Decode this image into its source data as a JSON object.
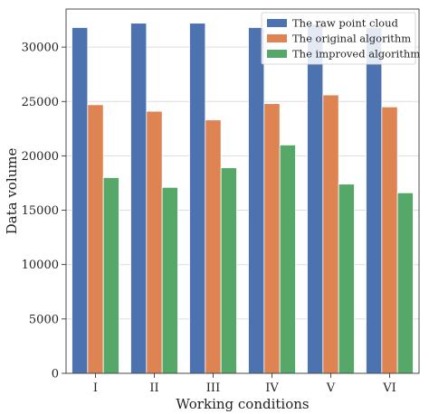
{
  "chart_data": {
    "type": "bar",
    "title": "",
    "xlabel": "Working conditions",
    "ylabel": "Data volume",
    "categories": [
      "I",
      "II",
      "III",
      "IV",
      "V",
      "VI"
    ],
    "ylim": [
      0,
      33500
    ],
    "yticks": [
      0,
      5000,
      10000,
      15000,
      20000,
      25000,
      30000
    ],
    "grid": true,
    "legend_position": "top-right",
    "series": [
      {
        "name": "The raw point cloud",
        "color": "#4c72b0",
        "values": [
          31800,
          32200,
          32200,
          31800,
          32100,
          31800
        ]
      },
      {
        "name": "The original algorithm",
        "color": "#dd8452",
        "values": [
          24700,
          24100,
          23300,
          24800,
          25600,
          24500
        ]
      },
      {
        "name": "The improved algorithm",
        "color": "#55a868",
        "values": [
          18000,
          17100,
          18900,
          21000,
          17400,
          16600
        ]
      }
    ]
  }
}
